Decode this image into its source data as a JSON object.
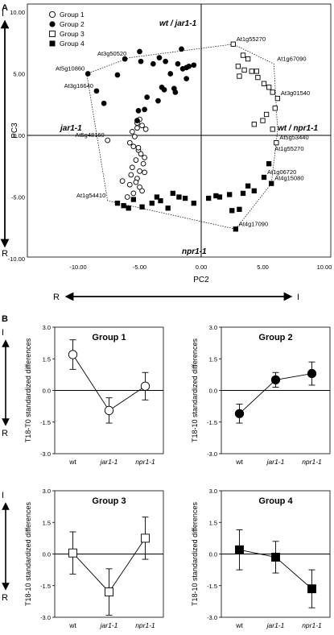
{
  "panel_a": {
    "label": "A",
    "top_side_label": "I",
    "bottom_side_label": "R",
    "left_side_label": "R",
    "right_side_label": "I",
    "legend": [
      {
        "name": "Group 1",
        "marker": "circle-open"
      },
      {
        "name": "Group 2",
        "marker": "circle-filled"
      },
      {
        "name": "Group 3",
        "marker": "square-open"
      },
      {
        "name": "Group 4",
        "marker": "square-filled"
      }
    ],
    "annotations": {
      "top": "wt / jar1-1",
      "right": "wt / npr1-1",
      "left": "jar1-1",
      "bottom": "npr1-1"
    }
  },
  "panel_b": {
    "label": "B",
    "side_top": "I",
    "side_bottom": "R"
  },
  "chart_data": [
    {
      "type": "scatter",
      "xlabel": "PC2",
      "ylabel": "PC3",
      "xlim": [
        -10,
        10
      ],
      "ylim": [
        -10,
        10
      ],
      "x_ticks": [
        "-10.00",
        "-5.00",
        "0.00",
        "5.00",
        "10.00"
      ],
      "y_ticks": [
        "10.00",
        "5.00",
        "0.00",
        "-5.00",
        "-10.00"
      ],
      "series": [
        {
          "name": "Group 1",
          "x": [
            -7.6,
            -5.4,
            -5.6,
            -5.2,
            -4.8,
            -5.2,
            -5.0,
            -4.5,
            -5.8,
            -5.5,
            -5.1,
            -4.9,
            -4.6,
            -5.3,
            -4.7,
            -5.6,
            -5.0,
            -5.7,
            -5.2,
            -6.4,
            -5.8,
            -5.0,
            -4.8,
            -5.5,
            -5.3,
            -4.6,
            -5.1,
            -6.0
          ],
          "y": [
            -0.4,
            -0.1,
            0.3,
            0.6,
            0.8,
            1.0,
            1.3,
            0.5,
            -0.6,
            -0.9,
            -1.2,
            -1.5,
            -1.8,
            -2.0,
            -2.3,
            -2.6,
            -2.9,
            -3.2,
            -3.5,
            -3.7,
            -4.0,
            -4.2,
            -4.5,
            -4.7,
            -3.8,
            -3.0,
            -1.0,
            -5.0
          ]
        },
        {
          "name": "Group 2",
          "x": [
            -9.2,
            -8.5,
            -7.9,
            -6.8,
            -6.2,
            -5.0,
            -3.9,
            -3.4,
            -2.9,
            -2.5,
            -1.9,
            -1.5,
            -1.2,
            -1.0,
            -1.6,
            -2.2,
            -3.0,
            -3.5,
            -4.4,
            -5.1,
            -5.2,
            -4.6,
            -3.2,
            -2.1,
            -0.6,
            -1.2,
            -4.9
          ],
          "y": [
            5.0,
            3.6,
            2.6,
            4.9,
            6.2,
            6.8,
            5.8,
            6.3,
            6.0,
            5.0,
            5.8,
            5.4,
            5.5,
            5.6,
            7.0,
            3.8,
            3.7,
            2.8,
            3.1,
            2.0,
            1.2,
            2.1,
            3.9,
            3.5,
            5.7,
            4.6,
            6.0
          ]
        },
        {
          "name": "Group 3",
          "x": [
            2.6,
            3.4,
            3.8,
            3.0,
            3.5,
            4.1,
            4.5,
            3.1,
            4.6,
            5.1,
            5.5,
            5.8,
            6.2,
            6.0,
            5.3,
            5.0,
            4.3,
            5.8,
            6.1
          ],
          "y": [
            7.4,
            6.5,
            6.2,
            5.6,
            5.3,
            5.2,
            5.2,
            4.8,
            4.7,
            4.2,
            3.9,
            3.5,
            3.0,
            2.2,
            1.7,
            1.2,
            0.9,
            0.5,
            -0.6
          ]
        },
        {
          "name": "Group 4",
          "x": [
            -6.8,
            -6.3,
            -5.5,
            -4.8,
            -4.0,
            -3.3,
            -2.3,
            -1.8,
            -1.3,
            -0.6,
            0.6,
            1.2,
            1.5,
            2.3,
            2.5,
            2.8,
            3.4,
            3.8,
            4.3,
            5.1,
            5.5,
            5.7,
            -5.9,
            -3.6,
            3.1,
            -2.7
          ],
          "y": [
            -5.5,
            -5.7,
            -5.2,
            -5.8,
            -5.5,
            -5.3,
            -4.7,
            -5.0,
            -5.1,
            -5.5,
            -5.1,
            -4.9,
            -5.0,
            -4.8,
            -6.1,
            -7.6,
            -4.7,
            -4.1,
            -4.5,
            -3.4,
            -2.3,
            -3.9,
            -5.9,
            -5.0,
            -6.0,
            -5.9
          ]
        }
      ],
      "point_labels": [
        {
          "text": "At1g55270",
          "x": 2.6,
          "y": 7.4
        },
        {
          "text": "At3g50520",
          "x": -5.8,
          "y": 6.2
        },
        {
          "text": "At1g67090",
          "x": 5.9,
          "y": 5.8
        },
        {
          "text": "At5g10860",
          "x": -9.2,
          "y": 5.0
        },
        {
          "text": "At3g16640",
          "x": -8.5,
          "y": 3.6
        },
        {
          "text": "At3g01540",
          "x": 6.2,
          "y": 3.0
        },
        {
          "text": "At5g48160",
          "x": -7.6,
          "y": -0.4
        },
        {
          "text": "At5g53440",
          "x": 6.1,
          "y": -0.6
        },
        {
          "text": "At1g55270",
          "x": 5.7,
          "y": -1.5
        },
        {
          "text": "At1g06720",
          "x": 5.1,
          "y": -3.4
        },
        {
          "text": "At4g15080",
          "x": 5.7,
          "y": -3.9
        },
        {
          "text": "At1g54410",
          "x": -7.5,
          "y": -5.3
        },
        {
          "text": "At4g17090",
          "x": 2.8,
          "y": -7.6
        }
      ],
      "hull": [
        [
          -7.6,
          -5.3
        ],
        [
          -9.3,
          5.0
        ],
        [
          -5.8,
          6.3
        ],
        [
          2.6,
          7.4
        ],
        [
          5.9,
          5.8
        ],
        [
          6.2,
          0.4
        ],
        [
          5.7,
          -3.9
        ],
        [
          2.8,
          -7.6
        ],
        [
          -7.6,
          -5.3
        ]
      ]
    },
    {
      "type": "line",
      "title": "Group 1",
      "marker": "circle-open",
      "ylabel": "T18-T0 standardized differences",
      "categories": [
        "wt",
        "jar1-1",
        "npr1-1"
      ],
      "values": [
        1.7,
        -0.95,
        0.2
      ],
      "errors": [
        0.7,
        0.6,
        0.65
      ],
      "ylim": [
        -3,
        3
      ],
      "y_ticks": [
        "3.0",
        "1.5",
        "0.0",
        "-1.5",
        "-3.0"
      ]
    },
    {
      "type": "line",
      "title": "Group 2",
      "marker": "circle-filled",
      "ylabel": "T18-10 standardized differences",
      "categories": [
        "wt",
        "jar1-1",
        "npr1-1"
      ],
      "values": [
        -1.1,
        0.5,
        0.8
      ],
      "errors": [
        0.45,
        0.35,
        0.55
      ],
      "ylim": [
        -3,
        3
      ],
      "y_ticks": [
        "3.0",
        "1.5",
        "0.0",
        "-1.5",
        "-3.0"
      ]
    },
    {
      "type": "line",
      "title": "Group 3",
      "marker": "square-open",
      "ylabel": "T18-10 standardized differences",
      "categories": [
        "wt",
        "jar1-1",
        "npr1-1"
      ],
      "values": [
        0.05,
        -1.8,
        0.75
      ],
      "errors": [
        1.0,
        1.1,
        1.0
      ],
      "ylim": [
        -3,
        3
      ],
      "y_ticks": [
        "3.0",
        "1.5",
        "0.0",
        "-1.5",
        "-3.0"
      ]
    },
    {
      "type": "line",
      "title": "Group 4",
      "marker": "square-filled",
      "ylabel": "T18-10 standardized differences",
      "categories": [
        "wt",
        "jar1-1",
        "npr1-1"
      ],
      "values": [
        0.2,
        -0.15,
        -1.65
      ],
      "errors": [
        0.95,
        0.75,
        0.9
      ],
      "ylim": [
        -3,
        3
      ],
      "y_ticks": [
        "3.0",
        "1.5",
        "0.0",
        "-1.5",
        "-3.0"
      ]
    }
  ]
}
